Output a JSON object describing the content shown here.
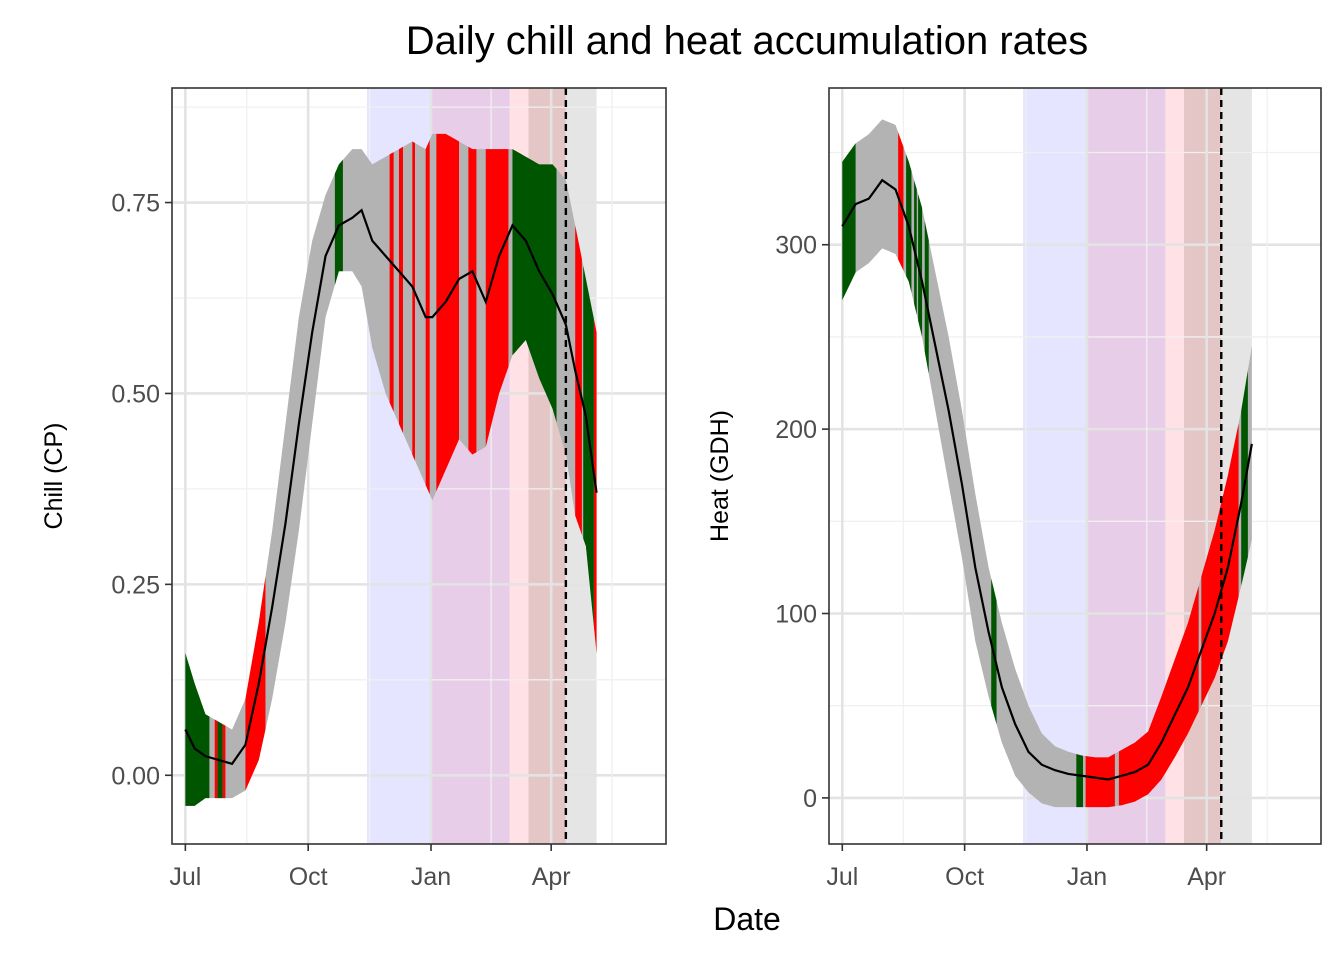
{
  "figure": {
    "title": "Daily chill and heat accumulation rates",
    "xlabel": "Date"
  },
  "colors": {
    "ribbon": "#b3b3b3",
    "good": "#005500",
    "bad": "#ff0000",
    "line": "#000000",
    "endodormancy": "#e5e5ff",
    "overlap": "#e8cde8",
    "ecodormancy": "#ffe1e6",
    "late_overlap": "#e4c6c6",
    "post": "#e5e5e5"
  },
  "chart_data": [
    {
      "type": "area",
      "ylabel": "Chill (CP)",
      "ylim": [
        -0.09,
        0.9
      ],
      "xlim": [
        -10,
        360
      ],
      "xticks": [
        {
          "value": 0,
          "label": "Jul"
        },
        {
          "value": 92,
          "label": "Oct"
        },
        {
          "value": 184,
          "label": "Jan"
        },
        {
          "value": 274,
          "label": "Apr"
        }
      ],
      "yticks": [
        {
          "value": 0.0,
          "label": "0.00"
        },
        {
          "value": 0.25,
          "label": "0.25"
        },
        {
          "value": 0.5,
          "label": "0.50"
        },
        {
          "value": 0.75,
          "label": "0.75"
        }
      ],
      "grid": true,
      "shaded_periods": [
        {
          "start": 136,
          "end": 184,
          "color_key": "endodormancy"
        },
        {
          "start": 184,
          "end": 243,
          "color_key": "overlap"
        },
        {
          "start": 243,
          "end": 257,
          "color_key": "ecodormancy"
        },
        {
          "start": 257,
          "end": 285,
          "color_key": "late_overlap"
        },
        {
          "start": 285,
          "end": 308,
          "color_key": "post"
        }
      ],
      "dashed_line_x": 285,
      "mean_x": [
        0,
        7,
        15,
        25,
        35,
        45,
        55,
        65,
        75,
        85,
        95,
        105,
        115,
        125,
        132,
        140,
        150,
        160,
        170,
        180,
        185,
        195,
        205,
        215,
        225,
        235,
        245,
        255,
        265,
        275,
        285,
        292,
        300,
        308
      ],
      "mean_y": [
        0.06,
        0.035,
        0.025,
        0.02,
        0.015,
        0.04,
        0.12,
        0.22,
        0.33,
        0.46,
        0.58,
        0.68,
        0.72,
        0.73,
        0.74,
        0.7,
        0.68,
        0.66,
        0.64,
        0.6,
        0.6,
        0.62,
        0.65,
        0.66,
        0.62,
        0.68,
        0.72,
        0.7,
        0.66,
        0.63,
        0.59,
        0.53,
        0.47,
        0.37
      ],
      "upper_y": [
        0.16,
        0.12,
        0.08,
        0.07,
        0.06,
        0.1,
        0.2,
        0.32,
        0.46,
        0.6,
        0.7,
        0.76,
        0.8,
        0.82,
        0.82,
        0.8,
        0.81,
        0.82,
        0.83,
        0.82,
        0.84,
        0.84,
        0.83,
        0.82,
        0.82,
        0.82,
        0.82,
        0.81,
        0.8,
        0.8,
        0.78,
        0.72,
        0.65,
        0.58
      ],
      "lower_y": [
        -0.04,
        -0.04,
        -0.03,
        -0.03,
        -0.03,
        -0.02,
        0.02,
        0.1,
        0.2,
        0.32,
        0.46,
        0.6,
        0.66,
        0.66,
        0.64,
        0.56,
        0.5,
        0.46,
        0.42,
        0.38,
        0.36,
        0.4,
        0.44,
        0.42,
        0.43,
        0.5,
        0.55,
        0.57,
        0.52,
        0.48,
        0.42,
        0.34,
        0.3,
        0.16
      ],
      "good_ranges": [
        [
          0,
          18
        ],
        [
          24,
          28
        ],
        [
          112,
          118
        ],
        [
          245,
          278
        ],
        [
          298,
          306
        ]
      ],
      "bad_ranges": [
        [
          22,
          24
        ],
        [
          28,
          30
        ],
        [
          45,
          60
        ],
        [
          153,
          156
        ],
        [
          160,
          163
        ],
        [
          170,
          172
        ],
        [
          180,
          183
        ],
        [
          188,
          205
        ],
        [
          212,
          218
        ],
        [
          225,
          242
        ],
        [
          292,
          297
        ],
        [
          306,
          308
        ]
      ]
    },
    {
      "type": "area",
      "ylabel": "Heat (GDH)",
      "ylim": [
        -25,
        385
      ],
      "xlim": [
        -10,
        360
      ],
      "xticks": [
        {
          "value": 0,
          "label": "Jul"
        },
        {
          "value": 92,
          "label": "Oct"
        },
        {
          "value": 184,
          "label": "Jan"
        },
        {
          "value": 274,
          "label": "Apr"
        }
      ],
      "yticks": [
        {
          "value": 0,
          "label": "0"
        },
        {
          "value": 100,
          "label": "100"
        },
        {
          "value": 200,
          "label": "200"
        },
        {
          "value": 300,
          "label": "300"
        }
      ],
      "grid": true,
      "shaded_periods": [
        {
          "start": 136,
          "end": 184,
          "color_key": "endodormancy"
        },
        {
          "start": 184,
          "end": 243,
          "color_key": "overlap"
        },
        {
          "start": 243,
          "end": 257,
          "color_key": "ecodormancy"
        },
        {
          "start": 257,
          "end": 285,
          "color_key": "late_overlap"
        },
        {
          "start": 285,
          "end": 308,
          "color_key": "post"
        }
      ],
      "dashed_line_x": 285,
      "mean_x": [
        0,
        10,
        20,
        30,
        40,
        50,
        60,
        70,
        80,
        90,
        100,
        110,
        120,
        130,
        140,
        150,
        160,
        170,
        180,
        190,
        200,
        210,
        220,
        230,
        240,
        250,
        260,
        270,
        280,
        290,
        300,
        308
      ],
      "mean_y": [
        310,
        322,
        325,
        335,
        330,
        310,
        280,
        245,
        210,
        170,
        125,
        90,
        60,
        40,
        25,
        18,
        15,
        13,
        12,
        11,
        10,
        12,
        14,
        18,
        30,
        45,
        60,
        80,
        100,
        125,
        160,
        192
      ],
      "upper_y": [
        345,
        355,
        360,
        368,
        365,
        345,
        320,
        285,
        250,
        210,
        165,
        125,
        95,
        70,
        50,
        35,
        28,
        25,
        23,
        22,
        22,
        26,
        30,
        36,
        55,
        75,
        95,
        120,
        145,
        175,
        210,
        245
      ],
      "lower_y": [
        270,
        285,
        290,
        298,
        295,
        280,
        250,
        210,
        170,
        130,
        85,
        55,
        30,
        12,
        3,
        -3,
        -5,
        -5,
        -5,
        -5,
        -5,
        -4,
        -2,
        2,
        10,
        22,
        35,
        50,
        65,
        85,
        115,
        140
      ],
      "good_ranges": [
        [
          0,
          10
        ],
        [
          48,
          52
        ],
        [
          54,
          56
        ],
        [
          57,
          60
        ],
        [
          62,
          65
        ],
        [
          112,
          116
        ],
        [
          176,
          181
        ],
        [
          300,
          305
        ]
      ],
      "bad_ranges": [
        [
          42,
          46
        ],
        [
          183,
          205
        ],
        [
          208,
          268
        ],
        [
          270,
          298
        ]
      ]
    }
  ]
}
